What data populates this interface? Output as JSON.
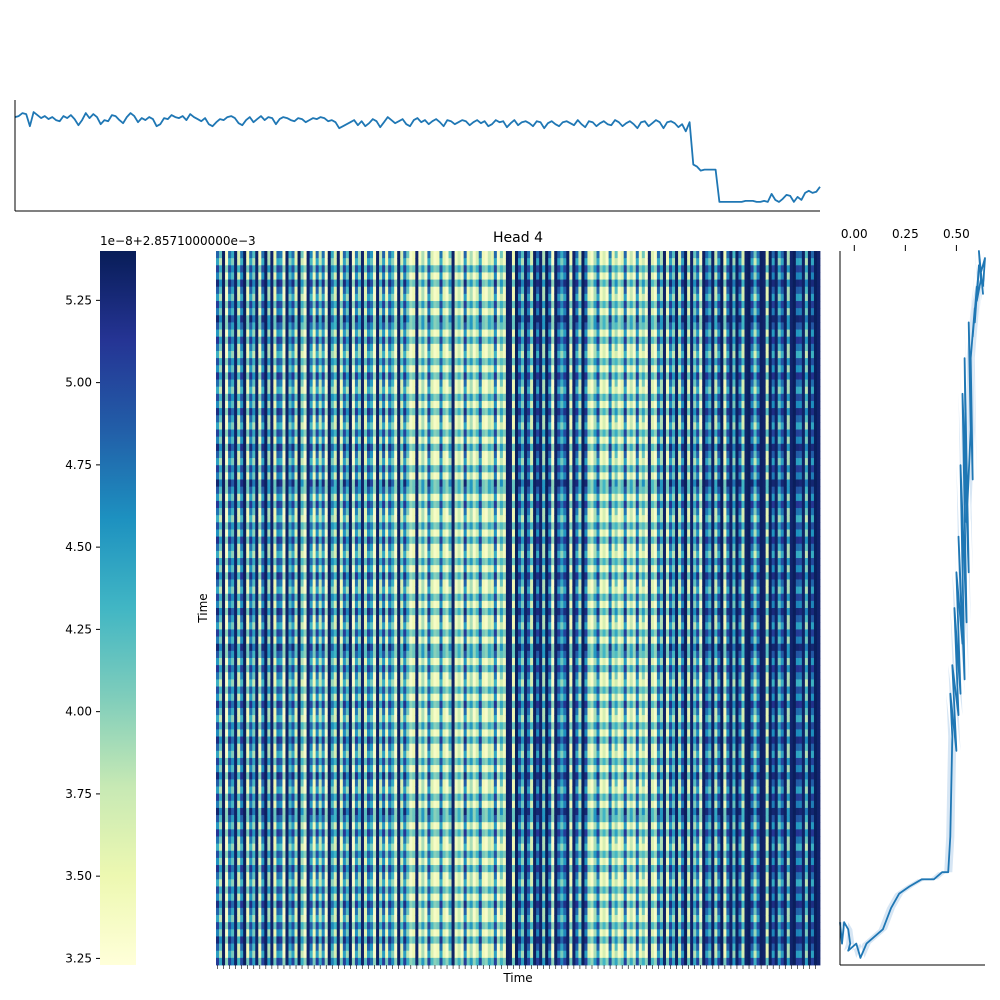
{
  "chart_data": [
    {
      "type": "line",
      "panel": "top-marginal",
      "title": "",
      "xlabel": "",
      "ylabel": "",
      "axis_ticks": "none",
      "series": [
        {
          "color": "#1f77b4",
          "values": [
            0.89,
            0.9,
            0.93,
            0.92,
            0.8,
            0.94,
            0.91,
            0.88,
            0.9,
            0.87,
            0.89,
            0.86,
            0.85,
            0.9,
            0.88,
            0.91,
            0.87,
            0.81,
            0.86,
            0.93,
            0.88,
            0.92,
            0.89,
            0.82,
            0.86,
            0.85,
            0.91,
            0.9,
            0.86,
            0.83,
            0.89,
            0.93,
            0.9,
            0.84,
            0.88,
            0.86,
            0.89,
            0.87,
            0.8,
            0.82,
            0.88,
            0.87,
            0.91,
            0.89,
            0.88,
            0.9,
            0.86,
            0.92,
            0.89,
            0.87,
            0.85,
            0.88,
            0.82,
            0.8,
            0.84,
            0.87,
            0.86,
            0.89,
            0.9,
            0.88,
            0.83,
            0.81,
            0.86,
            0.89,
            0.84,
            0.87,
            0.9,
            0.86,
            0.89,
            0.88,
            0.82,
            0.87,
            0.89,
            0.88,
            0.86,
            0.85,
            0.88,
            0.87,
            0.84,
            0.86,
            0.88,
            0.87,
            0.89,
            0.88,
            0.85,
            0.86,
            0.84,
            0.78,
            0.8,
            0.82,
            0.84,
            0.86,
            0.81,
            0.85,
            0.8,
            0.83,
            0.87,
            0.85,
            0.79,
            0.84,
            0.89,
            0.86,
            0.83,
            0.85,
            0.87,
            0.82,
            0.8,
            0.86,
            0.88,
            0.84,
            0.86,
            0.82,
            0.85,
            0.87,
            0.84,
            0.8,
            0.86,
            0.85,
            0.82,
            0.84,
            0.86,
            0.85,
            0.81,
            0.84,
            0.86,
            0.83,
            0.85,
            0.8,
            0.82,
            0.86,
            0.84,
            0.85,
            0.79,
            0.83,
            0.86,
            0.81,
            0.84,
            0.85,
            0.83,
            0.8,
            0.85,
            0.84,
            0.78,
            0.83,
            0.85,
            0.82,
            0.8,
            0.84,
            0.85,
            0.83,
            0.81,
            0.86,
            0.82,
            0.79,
            0.85,
            0.84,
            0.8,
            0.83,
            0.85,
            0.82,
            0.81,
            0.86,
            0.84,
            0.8,
            0.83,
            0.85,
            0.82,
            0.78,
            0.84,
            0.85,
            0.8,
            0.83,
            0.86,
            0.84,
            0.78,
            0.84,
            0.85,
            0.83,
            0.79,
            0.82,
            0.75,
            0.84,
            0.42,
            0.4,
            0.36,
            0.37,
            0.37,
            0.37,
            0.37,
            0.05,
            0.05,
            0.05,
            0.05,
            0.05,
            0.05,
            0.05,
            0.06,
            0.06,
            0.06,
            0.05,
            0.05,
            0.06,
            0.05,
            0.13,
            0.07,
            0.05,
            0.08,
            0.12,
            0.11,
            0.05,
            0.1,
            0.07,
            0.14,
            0.16,
            0.14,
            0.15,
            0.2
          ]
        }
      ]
    },
    {
      "type": "heatmap",
      "panel": "main",
      "title": "Head 4",
      "xlabel": "Time",
      "ylabel": "Time",
      "colormap": "YlGnBu",
      "colorbar": {
        "offset_label": "1e−8+2.8571000000e−3",
        "ticks": [
          "3.25",
          "3.50",
          "3.75",
          "4.00",
          "4.25",
          "4.50",
          "4.75",
          "5.00",
          "5.25"
        ],
        "range": [
          3.23,
          5.4
        ],
        "stops": [
          "#ffffd9",
          "#edf8b1",
          "#c7e9b4",
          "#7fcdbb",
          "#41b6c4",
          "#1d91c0",
          "#225ea8",
          "#253494",
          "#081d58"
        ]
      },
      "rows": 100,
      "columns": 200,
      "column_levels": [
        0.95,
        0.4,
        0.98,
        0.05,
        0.92,
        0.6,
        0.97,
        0.2,
        0.88,
        0.99,
        0.1,
        0.93,
        0.45,
        0.97,
        0.08,
        0.9,
        0.98,
        0.3,
        0.96,
        0.12,
        0.94,
        0.85,
        0.05,
        0.97,
        0.55,
        0.92,
        0.15,
        0.99,
        0.35,
        0.05,
        0.96,
        0.8,
        0.1,
        0.95,
        0.25,
        0.9,
        0.05,
        0.98,
        0.6,
        0.2,
        0.97,
        0.1,
        0.94,
        0.45,
        0.99,
        0.05,
        0.88,
        0.3,
        0.96,
        0.15,
        0.93,
        0.7,
        0.05,
        0.97,
        0.25,
        0.95,
        0.1,
        0.91,
        0.55,
        0.05,
        0.98,
        0.2,
        0.94,
        0.35,
        0.05,
        0.12,
        0.96,
        0.08,
        0.3,
        0.05,
        0.92,
        0.18,
        0.06,
        0.1,
        0.88,
        0.15,
        0.05,
        0.4,
        0.97,
        0.08,
        0.22,
        0.05,
        0.95,
        0.12,
        0.3,
        0.05,
        0.2,
        0.9,
        0.1,
        0.05,
        0.25,
        0.15,
        0.93,
        0.05,
        0.35,
        0.08,
        0.98,
        0.96,
        0.12,
        0.99,
        0.95,
        0.45,
        0.97,
        0.92,
        0.2,
        0.98,
        0.94,
        0.96,
        0.3,
        0.99,
        0.91,
        0.05,
        0.97,
        0.95,
        0.6,
        0.93,
        0.98,
        0.1,
        0.96,
        0.9,
        0.25,
        0.99,
        0.94,
        0.15,
        0.05,
        0.3,
        0.92,
        0.08,
        0.2,
        0.05,
        0.88,
        0.12,
        0.4,
        0.05,
        0.15,
        0.94,
        0.07,
        0.25,
        0.05,
        0.9,
        0.1,
        0.35,
        0.05,
        0.96,
        0.18,
        0.05,
        0.92,
        0.3,
        0.97,
        0.1,
        0.95,
        0.45,
        0.98,
        0.2,
        0.93,
        0.99,
        0.15,
        0.96,
        0.4,
        0.94,
        0.05,
        0.98,
        0.92,
        0.6,
        0.97,
        0.25,
        0.95,
        0.99,
        0.1,
        0.93,
        0.96,
        0.5,
        0.98,
        0.94,
        0.2,
        0.97,
        0.99,
        0.95,
        0.35,
        0.92,
        0.98,
        0.96,
        0.15,
        0.99,
        0.94,
        0.97,
        0.55,
        0.93,
        0.98,
        0.3,
        0.96,
        0.99,
        0.95,
        0.92,
        0.97,
        0.45,
        0.98,
        0.94,
        0.99,
        0.96,
        0.93,
        0.98
      ]
    },
    {
      "type": "line",
      "panel": "right-marginal",
      "title": "",
      "xlabel": "",
      "ylabel": "",
      "xticks": [
        "0.00",
        "0.25",
        "0.50"
      ],
      "x_position": "top",
      "xlim": [
        -0.07,
        0.64
      ],
      "series": [
        {
          "color": "#1f77b4",
          "x": [
            -0.07,
            -0.06,
            -0.05,
            -0.03,
            -0.02,
            -0.03,
            0.01,
            0.02,
            0.03,
            0.06,
            0.14,
            0.18,
            0.22,
            0.27,
            0.33,
            0.39,
            0.43,
            0.46,
            0.47,
            0.48,
            0.47,
            0.5,
            0.48,
            0.51,
            0.49,
            0.52,
            0.5,
            0.53,
            0.51,
            0.54,
            0.52,
            0.55,
            0.53,
            0.56,
            0.54,
            0.55,
            0.57,
            0.56,
            0.58,
            0.57,
            0.59,
            0.58,
            0.6,
            0.59,
            0.61,
            0.6,
            0.62,
            0.61,
            0.63,
            0.62,
            0.64,
            0.63
          ],
          "y_fraction": [
            0.06,
            0.03,
            0.06,
            0.05,
            0.03,
            0.02,
            0.03,
            0.02,
            0.01,
            0.03,
            0.05,
            0.08,
            0.1,
            0.11,
            0.12,
            0.12,
            0.13,
            0.13,
            0.18,
            0.32,
            0.38,
            0.3,
            0.42,
            0.35,
            0.5,
            0.38,
            0.55,
            0.45,
            0.6,
            0.4,
            0.7,
            0.48,
            0.8,
            0.55,
            0.85,
            0.62,
            0.75,
            0.9,
            0.68,
            0.85,
            0.92,
            0.88,
            0.95,
            0.9,
            0.98,
            0.93,
            0.96,
            1.0,
            0.94,
            0.97,
            0.99,
            0.95
          ],
          "band": true
        }
      ]
    }
  ],
  "colors": {
    "line": "#1f77b4",
    "band": "#a6c8e6",
    "axis": "#000000"
  }
}
